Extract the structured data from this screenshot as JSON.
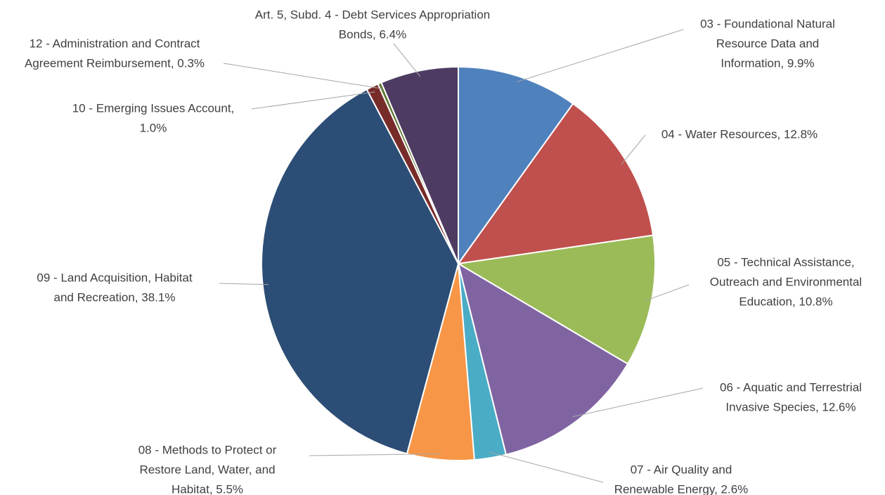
{
  "chart_data": {
    "type": "pie",
    "values": [
      9.9,
      12.8,
      10.8,
      12.6,
      2.6,
      5.5,
      38.1,
      1.0,
      0.3,
      6.4
    ],
    "value_labels": [
      [
        "03 - Foundational Natural",
        "Resource Data and",
        "Information, 9.9%"
      ],
      [
        "04 - Water Resources, 12.8%"
      ],
      [
        "05 - Technical Assistance,",
        "Outreach and Environmental",
        "Education, 10.8%"
      ],
      [
        "06 - Aquatic and Terrestrial",
        "Invasive Species, 12.6%"
      ],
      [
        "07 - Air Quality and",
        "Renewable Energy, 2.6%"
      ],
      [
        "08 - Methods to Protect or",
        "Restore Land, Water, and",
        "Habitat, 5.5%"
      ],
      [
        "09 - Land Acquisition, Habitat",
        "and Recreation, 38.1%"
      ],
      [
        "10 - Emerging Issues Account,",
        "1.0%"
      ],
      [
        "12 - Administration and Contract",
        "Agreement Reimbursement, 0.3%"
      ],
      [
        "Art. 5, Subd. 4 - Debt Services Appropriation",
        "Bonds, 6.4%"
      ]
    ],
    "colors": [
      "#4f81bd",
      "#c0504d",
      "#9bbb59",
      "#8064a2",
      "#4bacc6",
      "#f79646",
      "#2c4d75",
      "#772c2a",
      "#5f7530",
      "#4d3b62"
    ]
  }
}
